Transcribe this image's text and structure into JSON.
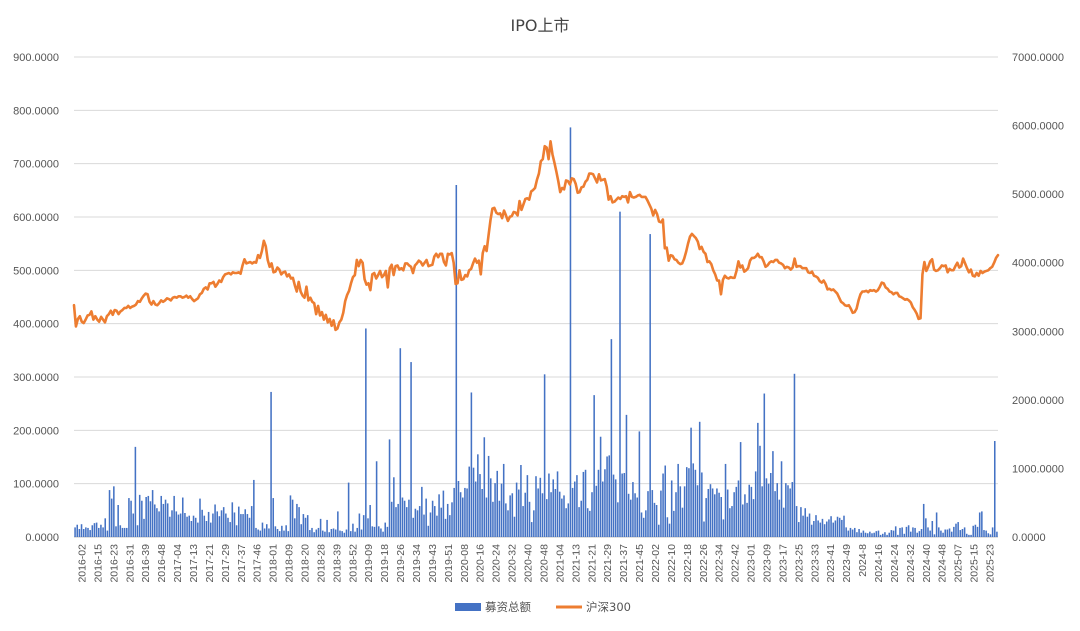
{
  "chart_data": {
    "type": "bar+line",
    "title": "IPO上市",
    "colors": {
      "bars": "#4472c4",
      "line": "#ed7d31",
      "grid": "#d9d9d9",
      "text": "#595959"
    },
    "y_left": {
      "ylim": [
        0,
        900
      ],
      "ticks": [
        "0.0000",
        "100.0000",
        "200.0000",
        "300.0000",
        "400.0000",
        "500.0000",
        "600.0000",
        "700.0000",
        "800.0000",
        "900.0000"
      ]
    },
    "y_right": {
      "ylim": [
        0,
        7000
      ],
      "ticks": [
        "0.0000",
        "1000.0000",
        "2000.0000",
        "3000.0000",
        "4000.0000",
        "5000.0000",
        "6000.0000",
        "7000.0000"
      ]
    },
    "x_ticks": [
      "2016-02",
      "2016-15",
      "2016-23",
      "2016-31",
      "2016-39",
      "2016-48",
      "2017-04",
      "2017-13",
      "2017-21",
      "2017-29",
      "2017-37",
      "2017-46",
      "2018-01",
      "2018-09",
      "2018-20",
      "2018-28",
      "2018-39",
      "2018-52",
      "2019-09",
      "2019-18",
      "2019-26",
      "2019-34",
      "2019-43",
      "2019-51",
      "2020-08",
      "2020-16",
      "2020-24",
      "2020-32",
      "2020-40",
      "2020-48",
      "2021-04",
      "2021-13",
      "2021-21",
      "2021-29",
      "2021-37",
      "2021-45",
      "2022-02",
      "2022-10",
      "2022-18",
      "2022-26",
      "2022-34",
      "2022-42",
      "2023-01",
      "2023-09",
      "2023-17",
      "2023-25",
      "2023-33",
      "2023-41",
      "2023-49",
      "2024-8",
      "2024-16",
      "2024-24",
      "2024-32",
      "2024-40",
      "2024-48",
      "2025-07",
      "2025-15",
      "2025-23"
    ],
    "legend": {
      "position": "bottom",
      "items": [
        {
          "name": "募资总额",
          "type": "bar",
          "axis": "left"
        },
        {
          "name": "沪深300",
          "type": "line",
          "axis": "right"
        }
      ]
    },
    "grid": true,
    "series": [
      {
        "name": "募资总额",
        "axis": "left",
        "values": [
          18,
          23,
          15,
          24,
          15,
          18,
          17,
          13,
          22,
          26,
          27,
          17,
          23,
          18,
          35,
          12,
          88,
          72,
          95,
          20,
          60,
          22,
          17,
          17,
          17,
          73,
          68,
          44,
          169,
          22,
          79,
          68,
          34,
          75,
          77,
          67,
          88,
          61,
          54,
          48,
          77,
          62,
          70,
          63,
          38,
          50,
          77,
          48,
          42,
          44,
          74,
          45,
          38,
          40,
          30,
          40,
          36,
          27,
          72,
          51,
          40,
          30,
          47,
          27,
          44,
          61,
          48,
          39,
          50,
          56,
          44,
          36,
          28,
          65,
          46,
          22,
          57,
          43,
          43,
          52,
          43,
          36,
          58,
          107,
          17,
          14,
          12,
          27,
          16,
          24,
          16,
          272,
          73,
          20,
          15,
          11,
          21,
          12,
          22,
          11,
          78,
          70,
          35,
          62,
          56,
          24,
          43,
          36,
          41,
          13,
          17,
          9,
          14,
          17,
          34,
          12,
          10,
          32,
          9,
          15,
          16,
          14,
          48,
          12,
          11,
          8,
          14,
          102,
          11,
          25,
          10,
          17,
          44,
          14,
          41,
          391,
          35,
          60,
          20,
          19,
          142,
          20,
          16,
          10,
          27,
          19,
          183,
          66,
          112,
          56,
          62,
          354,
          74,
          68,
          56,
          70,
          328,
          36,
          53,
          50,
          58,
          94,
          42,
          72,
          21,
          46,
          68,
          58,
          40,
          80,
          55,
          87,
          34,
          62,
          41,
          65,
          92,
          660,
          105,
          84,
          74,
          92,
          91,
          132,
          271,
          130,
          104,
          155,
          118,
          90,
          187,
          74,
          152,
          110,
          66,
          101,
          124,
          68,
          100,
          137,
          63,
          50,
          78,
          82,
          38,
          102,
          89,
          135,
          58,
          83,
          116,
          66,
          28,
          50,
          114,
          91,
          111,
          82,
          305,
          71,
          119,
          84,
          108,
          90,
          123,
          85,
          72,
          78,
          54,
          63,
          768,
          92,
          104,
          116,
          56,
          68,
          122,
          126,
          54,
          49,
          84,
          266,
          96,
          126,
          188,
          104,
          127,
          151,
          153,
          371,
          117,
          108,
          65,
          610,
          119,
          120,
          229,
          81,
          70,
          103,
          82,
          74,
          198,
          46,
          36,
          50,
          86,
          568,
          88,
          64,
          60,
          23,
          87,
          119,
          134,
          37,
          25,
          106,
          49,
          84,
          137,
          95,
          55,
          95,
          131,
          129,
          205,
          138,
          126,
          97,
          216,
          121,
          29,
          73,
          90,
          99,
          91,
          80,
          91,
          83,
          75,
          33,
          137,
          89,
          54,
          58,
          84,
          94,
          106,
          178,
          61,
          80,
          64,
          98,
          94,
          71,
          123,
          214,
          171,
          95,
          269,
          110,
          100,
          120,
          161,
          86,
          101,
          70,
          142,
          55,
          101,
          97,
          91,
          103,
          306,
          58,
          28,
          56,
          40,
          54,
          38,
          44,
          23,
          30,
          41,
          31,
          27,
          34,
          24,
          29,
          33,
          39,
          27,
          31,
          38,
          36,
          32,
          40,
          18,
          12,
          17,
          14,
          17,
          9,
          15,
          8,
          12,
          8,
          7,
          10,
          7,
          8,
          11,
          12,
          4,
          6,
          9,
          4,
          8,
          13,
          12,
          20,
          4,
          17,
          18,
          6,
          19,
          22,
          10,
          18,
          17,
          8,
          11,
          15,
          62,
          35,
          18,
          12,
          30,
          5,
          46,
          18,
          12,
          8,
          14,
          14,
          16,
          10,
          19,
          25,
          28,
          13,
          15,
          18,
          6,
          4,
          4,
          21,
          23,
          19,
          46,
          48,
          13,
          12,
          7,
          5,
          18,
          180,
          10
        ]
      },
      {
        "name": "沪深300",
        "axis": "right",
        "values": [
          3380,
          3070,
          3180,
          3220,
          3140,
          3120,
          3170,
          3230,
          3240,
          3290,
          3170,
          3220,
          3170,
          3140,
          3210,
          3170,
          3130,
          3220,
          3250,
          3300,
          3240,
          3310,
          3300,
          3250,
          3290,
          3310,
          3340,
          3340,
          3370,
          3340,
          3360,
          3370,
          3390,
          3440,
          3430,
          3480,
          3520,
          3550,
          3540,
          3430,
          3390,
          3440,
          3390,
          3380,
          3410,
          3450,
          3430,
          3450,
          3480,
          3470,
          3450,
          3490,
          3500,
          3490,
          3510,
          3510,
          3490,
          3500,
          3520,
          3490,
          3510,
          3470,
          3440,
          3460,
          3480,
          3540,
          3560,
          3620,
          3640,
          3610,
          3700,
          3700,
          3720,
          3650,
          3690,
          3740,
          3720,
          3790,
          3830,
          3840,
          3850,
          3830,
          3860,
          3850,
          3850,
          3860,
          3840,
          3960,
          4050,
          3990,
          4000,
          4010,
          3990,
          4010,
          4000,
          4110,
          4070,
          4170,
          4320,
          4240,
          4040,
          3940,
          3990,
          3860,
          3870,
          3930,
          3900,
          3830,
          3860,
          3870,
          3800,
          3830,
          3770,
          3780,
          3670,
          3580,
          3720,
          3580,
          3520,
          3490,
          3650,
          3450,
          3490,
          3430,
          3410,
          3250,
          3370,
          3230,
          3280,
          3170,
          3240,
          3130,
          3180,
          3080,
          3160,
          3020,
          3040,
          3130,
          3170,
          3270,
          3440,
          3530,
          3590,
          3700,
          3790,
          3820,
          4040,
          3950,
          4040,
          4000,
          3760,
          3680,
          3700,
          3600,
          3830,
          3850,
          3770,
          3820,
          3880,
          3790,
          3820,
          3880,
          3640,
          3920,
          3970,
          3820,
          3950,
          3960,
          3900,
          3920,
          3890,
          3990,
          3990,
          3960,
          3940,
          3850,
          3960,
          3990,
          4030,
          4010,
          3960,
          4000,
          4040,
          3950,
          3960,
          3970,
          4090,
          4130,
          4080,
          4130,
          4130,
          4010,
          3960,
          4130,
          4120,
          4140,
          4000,
          3690,
          3700,
          3890,
          3750,
          3760,
          3820,
          3800,
          3890,
          3910,
          3990,
          4060,
          4000,
          4030,
          3830,
          4140,
          4240,
          4170,
          4400,
          4620,
          4790,
          4800,
          4730,
          4710,
          4720,
          4650,
          4760,
          4690,
          4610,
          4670,
          4680,
          4740,
          4730,
          4690,
          4900,
          4770,
          4850,
          4930,
          4940,
          4920,
          5040,
          5060,
          5090,
          5210,
          5300,
          5480,
          5510,
          5700,
          5680,
          5510,
          5770,
          5580,
          5460,
          5330,
          5190,
          5030,
          5090,
          5070,
          5200,
          5190,
          5140,
          5230,
          5220,
          5150,
          5020,
          5030,
          5100,
          5110,
          5180,
          5210,
          5300,
          5300,
          5290,
          5230,
          5170,
          5290,
          5200,
          5210,
          5220,
          5110,
          4920,
          4970,
          4880,
          4890,
          4920,
          4950,
          4930,
          4970,
          4960,
          4970,
          4880,
          5030,
          4960,
          4950,
          4960,
          4980,
          4990,
          4960,
          4960,
          4960,
          4910,
          4850,
          4790,
          4690,
          4770,
          4710,
          4600,
          4590,
          4630,
          4210,
          4220,
          4030,
          4110,
          4100,
          4050,
          4040,
          4000,
          3980,
          3990,
          4060,
          4160,
          4280,
          4380,
          4420,
          4390,
          4360,
          4310,
          4200,
          4230,
          4160,
          4130,
          4010,
          4020,
          3980,
          3890,
          3830,
          3740,
          3740,
          3540,
          3750,
          3810,
          3780,
          3770,
          3790,
          3780,
          3780,
          3880,
          4020,
          3930,
          3960,
          3870,
          3890,
          3920,
          4030,
          4070,
          4070,
          4090,
          4130,
          4080,
          4080,
          4020,
          3940,
          3960,
          4000,
          4020,
          4010,
          4040,
          4040,
          4000,
          3990,
          3970,
          3920,
          3940,
          3930,
          3900,
          3930,
          4060,
          3940,
          3950,
          3950,
          3920,
          3920,
          3920,
          3860,
          3850,
          3870,
          3810,
          3800,
          3780,
          3730,
          3710,
          3740,
          3690,
          3610,
          3620,
          3600,
          3610,
          3580,
          3550,
          3490,
          3430,
          3410,
          3380,
          3370,
          3380,
          3330,
          3270,
          3280,
          3330,
          3450,
          3540,
          3580,
          3580,
          3590,
          3570,
          3600,
          3590,
          3600,
          3580,
          3600,
          3650,
          3710,
          3700,
          3640,
          3620,
          3580,
          3570,
          3540,
          3560,
          3560,
          3510,
          3500,
          3480,
          3460,
          3470,
          3450,
          3420,
          3350,
          3310,
          3260,
          3180,
          3190,
          3830,
          4010,
          3880,
          3940,
          4020,
          4050,
          3900,
          3880,
          3890,
          3920,
          3960,
          3950,
          3960,
          3860,
          3910,
          3890,
          3890,
          3950,
          4000,
          3930,
          3950,
          4060,
          3990,
          3920,
          3860,
          3900,
          3810,
          3800,
          3850,
          3810,
          3880,
          3850,
          3870,
          3880,
          3890,
          3920,
          3940,
          4000,
          4070,
          4110
        ]
      }
    ]
  }
}
